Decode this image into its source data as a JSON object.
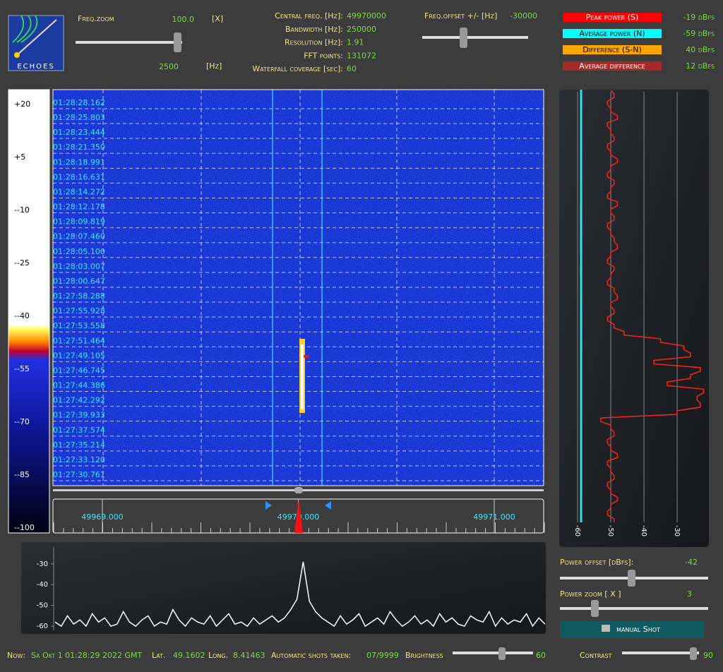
{
  "header": {
    "logo_text": "ECHOES",
    "freq_zoom": {
      "label": "Freq.zoom",
      "value": "100.0",
      "unit": "[X]",
      "hz_value": "2500",
      "hz_unit": "[Hz]"
    },
    "info": [
      {
        "label": "Central freq. [Hz]:",
        "value": "49970000"
      },
      {
        "label": "Bandwidth [Hz]:",
        "value": "250000"
      },
      {
        "label": "Resolution [Hz]:",
        "value": "1.91"
      },
      {
        "label": "FFT points:",
        "value": "131072"
      },
      {
        "label": "Waterfall coverage [sec]:",
        "value": "60"
      }
    ],
    "freq_offset": {
      "label": "Freq.offset +/- [Hz]",
      "value": "-30000"
    },
    "levels": [
      {
        "label": "Peak power (S)",
        "value": "-19 dBfs",
        "color": "#ff0000"
      },
      {
        "label": "Average power (N)",
        "value": "-59 dBfs",
        "color": "#00ffff"
      },
      {
        "label": "Difference (S-N)",
        "value": "40 dBfs",
        "color": "#ffa500"
      },
      {
        "label": "Average difference",
        "value": "12 dBfs",
        "color": "#a52a2a"
      }
    ]
  },
  "color_scale": {
    "labels": [
      "+20",
      "+5",
      "--10",
      "--25",
      "--40",
      "--55",
      "--70",
      "--85",
      "--100"
    ]
  },
  "waterfall": {
    "timestamps": [
      "01:28:28.162",
      "01:28:25.803",
      "01:28:23.444",
      "01:28:21.350",
      "01:28:18.991",
      "01:28:16.631",
      "01:28:14.272",
      "01:28:12.178",
      "01:28:09.819",
      "01:28:07.460",
      "01:28:05.100",
      "01:28:03.007",
      "01:28:00.647",
      "01:27:58.288",
      "01:27:55.928",
      "01:27:53.558",
      "01:27:51.464",
      "01:27:49.105",
      "01:27:46.745",
      "01:27:44.386",
      "01:27:42.292",
      "01:27:39.933",
      "01:27:37.574",
      "01:27:35.214",
      "01:27:33.120",
      "01:27:30.761"
    ]
  },
  "frequency_axis": {
    "labels": [
      "49969.000",
      "49970.000",
      "49971.000"
    ]
  },
  "power_graph": {
    "xlim": [
      -61.5,
      -21.5
    ],
    "xticks": [
      -60,
      -50,
      -40,
      -30
    ],
    "color": "#ff2020",
    "values": [
      -50,
      -49,
      -51,
      -50,
      -48,
      -51,
      -50,
      -49,
      -51,
      -50,
      -48,
      -50,
      -51,
      -49,
      -50,
      -51,
      -48,
      -50,
      -49,
      -51,
      -50,
      -49,
      -48,
      -50,
      -51,
      -49,
      -50,
      -51,
      -49,
      -48,
      -50,
      -49,
      -51,
      -49,
      -46,
      -35,
      -28,
      -26,
      -37,
      -23,
      -26,
      -33,
      -22,
      -24,
      -23,
      -30,
      -53,
      -50,
      -49,
      -51,
      -50,
      -48,
      -51,
      -50,
      -49,
      -51,
      -50,
      -48,
      -50,
      -51,
      -49
    ]
  },
  "spectrum": {
    "ylim": [
      -62,
      -26
    ],
    "yticks": [
      -30,
      -40,
      -50,
      -60
    ],
    "color": "#ffffff",
    "values": [
      -58,
      -60,
      -55,
      -59,
      -57,
      -60,
      -54,
      -58,
      -56,
      -60,
      -59,
      -53,
      -58,
      -60,
      -57,
      -55,
      -60,
      -58,
      -59,
      -52,
      -57,
      -60,
      -56,
      -58,
      -59,
      -55,
      -60,
      -57,
      -54,
      -59,
      -58,
      -60,
      -56,
      -59,
      -57,
      -55,
      -58,
      -56,
      -52,
      -47,
      -29,
      -48,
      -53,
      -56,
      -58,
      -60,
      -55,
      -59,
      -57,
      -54,
      -60,
      -58,
      -56,
      -59,
      -53,
      -57,
      -60,
      -58,
      -55,
      -59,
      -57,
      -60,
      -54,
      -58,
      -56,
      -59,
      -60,
      -55,
      -57,
      -58,
      -53,
      -60,
      -56,
      -59,
      -57,
      -58,
      -54,
      -60,
      -56,
      -59
    ]
  },
  "controls": {
    "power_offset": {
      "label": "Power offset [dBfs]:",
      "value": "-42"
    },
    "power_zoom": {
      "label": "Power zoom  [ X ]",
      "value": "3"
    },
    "button": "manual Shot"
  },
  "status": {
    "now_label": "Now:",
    "now": "Sa Okt 1 01:28:29 2022 GMT",
    "lat_label": "Lat.",
    "lat": "49.1602",
    "long_label": "Long.",
    "long": "8.41463",
    "shots_label": "Automatic shots taken:",
    "shots": "07/9999",
    "brightness_label": "Brightness",
    "brightness": "60",
    "contrast_label": "Contrast",
    "contrast": "90"
  }
}
